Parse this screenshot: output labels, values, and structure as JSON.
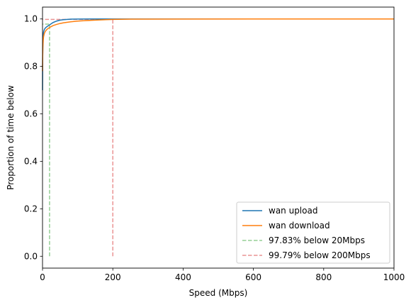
{
  "chart_data": {
    "type": "line",
    "title": "",
    "xlabel": "Speed (Mbps)",
    "ylabel": "Proportion of time below",
    "xlim": [
      0,
      1000
    ],
    "ylim": [
      -0.05,
      1.05
    ],
    "xticks": [
      0,
      200,
      400,
      600,
      800,
      1000
    ],
    "yticks": [
      0.0,
      0.2,
      0.4,
      0.6,
      0.8,
      1.0
    ],
    "xtick_labels": [
      "0",
      "200",
      "400",
      "600",
      "800",
      "1000"
    ],
    "ytick_labels": [
      "0.0",
      "0.2",
      "0.4",
      "0.6",
      "0.8",
      "1.0"
    ],
    "grid": false,
    "legend_position": "lower-right",
    "series": [
      {
        "name": "wan upload",
        "color": "#1f77b4",
        "style": "solid",
        "x": [
          0,
          0.5,
          1,
          2,
          3,
          5,
          8,
          12,
          16,
          20,
          25,
          30,
          40,
          50,
          60,
          70,
          80,
          100,
          150,
          200,
          400,
          600,
          800,
          1000
        ],
        "y": [
          0.7,
          0.85,
          0.9,
          0.93,
          0.945,
          0.955,
          0.962,
          0.967,
          0.971,
          0.975,
          0.98,
          0.985,
          0.991,
          0.995,
          0.997,
          0.998,
          0.999,
          0.9995,
          1.0,
          1.0,
          1.0,
          1.0,
          1.0,
          1.0
        ]
      },
      {
        "name": "wan download",
        "color": "#ff7f0e",
        "style": "solid",
        "x": [
          0,
          0.5,
          1,
          2,
          3,
          5,
          8,
          12,
          16,
          20,
          25,
          30,
          40,
          50,
          60,
          80,
          100,
          120,
          150,
          180,
          200,
          250,
          400,
          600,
          800,
          1000
        ],
        "y": [
          0.78,
          0.84,
          0.88,
          0.91,
          0.925,
          0.938,
          0.948,
          0.955,
          0.96,
          0.964,
          0.968,
          0.972,
          0.977,
          0.981,
          0.984,
          0.988,
          0.991,
          0.993,
          0.995,
          0.997,
          0.998,
          0.999,
          0.9995,
          1.0,
          1.0,
          1.0
        ]
      },
      {
        "name": "97.83% below 20Mbps",
        "color": "#2ca02c",
        "style": "dashed",
        "opacity": 0.5,
        "x": [
          20,
          20,
          0
        ],
        "y": [
          0,
          0.9783,
          0.9783
        ]
      },
      {
        "name": "99.79% below 200Mbps",
        "color": "#d62728",
        "style": "dashed",
        "opacity": 0.5,
        "x": [
          200,
          200,
          0
        ],
        "y": [
          0,
          0.9979,
          0.9979
        ]
      }
    ]
  }
}
